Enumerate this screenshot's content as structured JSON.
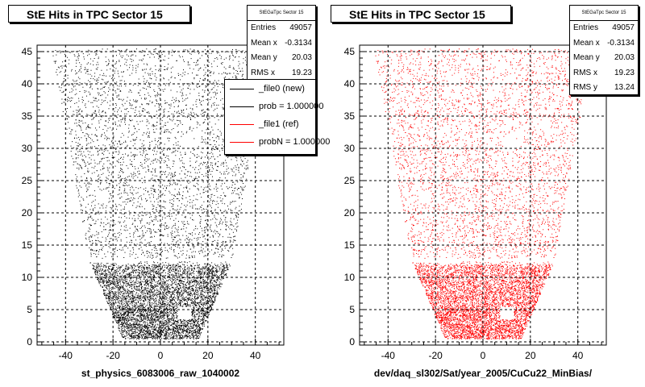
{
  "chart_data": [
    {
      "type": "scatter",
      "title": "StE Hits in TPC Sector 15",
      "xlabel": "st_physics_6083006_raw_1040002",
      "ylabel": "",
      "xlim": [
        -52,
        52
      ],
      "ylim": [
        -0.5,
        46
      ],
      "xticks": [
        "-40",
        "-20",
        "0",
        "20",
        "40"
      ],
      "yticks": [
        "0",
        "5",
        "10",
        "15",
        "20",
        "25",
        "30",
        "35",
        "40",
        "45"
      ],
      "grid": true,
      "point_color": "#000000",
      "stats": {
        "name": "StEGaTpc Sector 15",
        "rows": [
          {
            "label": "Entries",
            "value": "49057"
          },
          {
            "label": "Mean x",
            "value": "-0.3134"
          },
          {
            "label": "Mean y",
            "value": "20.03"
          },
          {
            "label": "RMS x",
            "value": "19.23"
          }
        ]
      },
      "legend": [
        {
          "label": "_file0 (new)",
          "color": "#000000"
        },
        {
          "label": "prob = 1.000000",
          "color": "#000000"
        },
        {
          "label": "_file1 (ref)",
          "color": "#ff0000"
        },
        {
          "label": "probN = 1.000000",
          "color": "#ff0000"
        }
      ],
      "distribution": {
        "shape": "trapezoid",
        "top_y": 45.5,
        "top_half_width": 46,
        "gap_y": 12.5,
        "gap_half_width": 30,
        "bottom_y": 0.5,
        "bottom_half_width": 16,
        "empty_band_y": [
          12.5,
          13.0
        ],
        "dense_region_y": [
          0,
          12
        ]
      }
    },
    {
      "type": "scatter",
      "title": "StE Hits in TPC Sector 15",
      "xlabel": "dev/daq_sl302/Sat/year_2005/CuCu22_MinBias/",
      "ylabel": "",
      "xlim": [
        -52,
        52
      ],
      "ylim": [
        -0.5,
        46
      ],
      "xticks": [
        "-40",
        "-20",
        "0",
        "20",
        "40"
      ],
      "yticks": [
        "0",
        "5",
        "10",
        "15",
        "20",
        "25",
        "30",
        "35",
        "40",
        "45"
      ],
      "grid": true,
      "point_color": "#ff0000",
      "stats": {
        "name": "StEGaTpc Sector 15",
        "rows": [
          {
            "label": "Entries",
            "value": "49057"
          },
          {
            "label": "Mean x",
            "value": "-0.3134"
          },
          {
            "label": "Mean y",
            "value": "20.03"
          },
          {
            "label": "RMS x",
            "value": "19.23"
          },
          {
            "label": "RMS y",
            "value": "13.24"
          }
        ]
      },
      "distribution": {
        "shape": "trapezoid",
        "top_y": 45.5,
        "top_half_width": 46,
        "gap_y": 12.5,
        "gap_half_width": 30,
        "bottom_y": 0.5,
        "bottom_half_width": 16,
        "empty_band_y": [
          12.5,
          13.0
        ],
        "dense_region_y": [
          0,
          12
        ]
      }
    }
  ]
}
